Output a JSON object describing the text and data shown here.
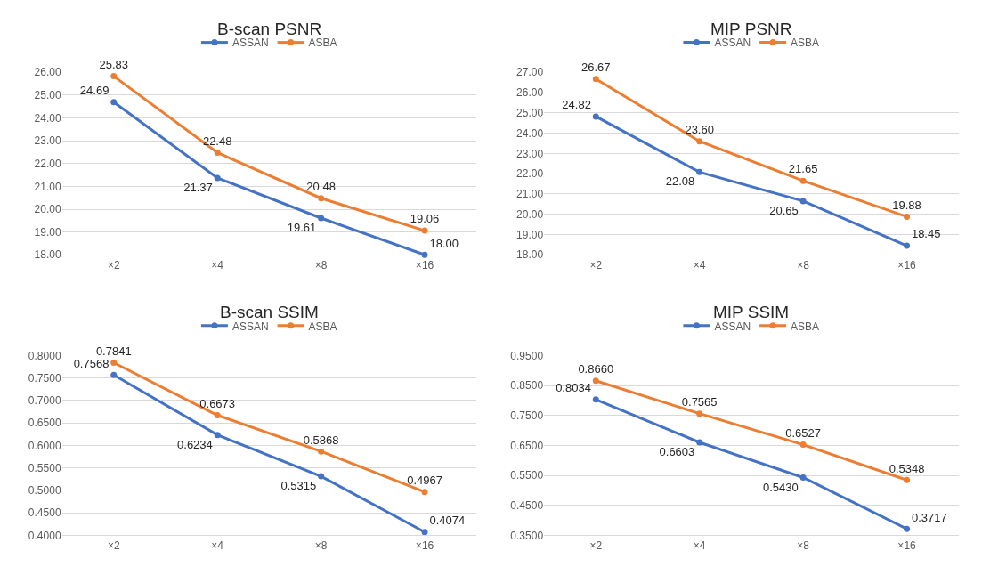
{
  "chart_data": [
    {
      "type": "line",
      "title": "B-scan PSNR",
      "categories": [
        "×2",
        "×4",
        "×8",
        "×16"
      ],
      "series": [
        {
          "name": "ASSAN",
          "color": "#4472c4",
          "values": [
            24.69,
            21.37,
            19.61,
            18.0
          ],
          "value_labels": [
            "24.69",
            "21.37",
            "19.61",
            "18.00"
          ]
        },
        {
          "name": "ASBA",
          "color": "#ed7d31",
          "values": [
            25.83,
            22.48,
            20.48,
            19.06
          ],
          "value_labels": [
            "25.83",
            "22.48",
            "20.48",
            "19.06"
          ]
        }
      ],
      "ylim": [
        18,
        26
      ],
      "yticks": [
        {
          "value": 18,
          "label": "18.00"
        },
        {
          "value": 19,
          "label": "19.00"
        },
        {
          "value": 20,
          "label": "20.00"
        },
        {
          "value": 21,
          "label": "21.00"
        },
        {
          "value": 22,
          "label": "22.00"
        },
        {
          "value": 23,
          "label": "23.00"
        },
        {
          "value": 24,
          "label": "24.00"
        },
        {
          "value": 25,
          "label": "25.00"
        },
        {
          "value": 26,
          "label": "26.00"
        }
      ],
      "grid": "y",
      "legend": "top",
      "marker": "circle",
      "line_style": "solid"
    },
    {
      "type": "line",
      "title": "MIP PSNR",
      "categories": [
        "×2",
        "×4",
        "×8",
        "×16"
      ],
      "series": [
        {
          "name": "ASSAN",
          "color": "#4472c4",
          "values": [
            24.82,
            22.08,
            20.65,
            18.45
          ],
          "value_labels": [
            "24.82",
            "22.08",
            "20.65",
            "18.45"
          ]
        },
        {
          "name": "ASBA",
          "color": "#ed7d31",
          "values": [
            26.67,
            23.6,
            21.65,
            19.88
          ],
          "value_labels": [
            "26.67",
            "23.60",
            "21.65",
            "19.88"
          ]
        }
      ],
      "ylim": [
        18,
        27
      ],
      "yticks": [
        {
          "value": 18,
          "label": "18.00"
        },
        {
          "value": 19,
          "label": "19.00"
        },
        {
          "value": 20,
          "label": "20.00"
        },
        {
          "value": 21,
          "label": "21.00"
        },
        {
          "value": 22,
          "label": "22.00"
        },
        {
          "value": 23,
          "label": "23.00"
        },
        {
          "value": 24,
          "label": "24.00"
        },
        {
          "value": 25,
          "label": "25.00"
        },
        {
          "value": 26,
          "label": "26.00"
        },
        {
          "value": 27,
          "label": "27.00"
        }
      ],
      "grid": "y",
      "legend": "top",
      "marker": "circle",
      "line_style": "solid"
    },
    {
      "type": "line",
      "title": "B-scan SSIM",
      "categories": [
        "×2",
        "×4",
        "×8",
        "×16"
      ],
      "series": [
        {
          "name": "ASSAN",
          "color": "#4472c4",
          "values": [
            0.7568,
            0.6234,
            0.5315,
            0.4074
          ],
          "value_labels": [
            "0.7568",
            "0.6234",
            "0.5315",
            "0.4074"
          ]
        },
        {
          "name": "ASBA",
          "color": "#ed7d31",
          "values": [
            0.7841,
            0.6673,
            0.5868,
            0.4967
          ],
          "value_labels": [
            "0.7841",
            "0.6673",
            "0.5868",
            "0.4967"
          ]
        }
      ],
      "ylim": [
        0.4,
        0.8
      ],
      "yticks": [
        {
          "value": 0.4,
          "label": "0.4000"
        },
        {
          "value": 0.45,
          "label": "0.4500"
        },
        {
          "value": 0.5,
          "label": "0.5000"
        },
        {
          "value": 0.55,
          "label": "0.5500"
        },
        {
          "value": 0.6,
          "label": "0.6000"
        },
        {
          "value": 0.65,
          "label": "0.6500"
        },
        {
          "value": 0.7,
          "label": "0.7000"
        },
        {
          "value": 0.75,
          "label": "0.7500"
        },
        {
          "value": 0.8,
          "label": "0.8000"
        }
      ],
      "grid": "y",
      "legend": "top",
      "marker": "circle",
      "line_style": "solid"
    },
    {
      "type": "line",
      "title": "MIP SSIM",
      "categories": [
        "×2",
        "×4",
        "×8",
        "×16"
      ],
      "series": [
        {
          "name": "ASSAN",
          "color": "#4472c4",
          "values": [
            0.8034,
            0.6603,
            0.543,
            0.3717
          ],
          "value_labels": [
            "0.8034",
            "0.6603",
            "0.5430",
            "0.3717"
          ]
        },
        {
          "name": "ASBA",
          "color": "#ed7d31",
          "values": [
            0.866,
            0.7565,
            0.6527,
            0.5348
          ],
          "value_labels": [
            "0.8660",
            "0.7565",
            "0.6527",
            "0.5348"
          ]
        }
      ],
      "ylim": [
        0.35,
        0.95
      ],
      "yticks": [
        {
          "value": 0.35,
          "label": "0.3500"
        },
        {
          "value": 0.45,
          "label": "0.4500"
        },
        {
          "value": 0.55,
          "label": "0.5500"
        },
        {
          "value": 0.65,
          "label": "0.6500"
        },
        {
          "value": 0.75,
          "label": "0.7500"
        },
        {
          "value": 0.85,
          "label": "0.8500"
        },
        {
          "value": 0.95,
          "label": "0.9500"
        }
      ],
      "grid": "y",
      "legend": "top",
      "marker": "circle",
      "line_style": "solid"
    }
  ]
}
